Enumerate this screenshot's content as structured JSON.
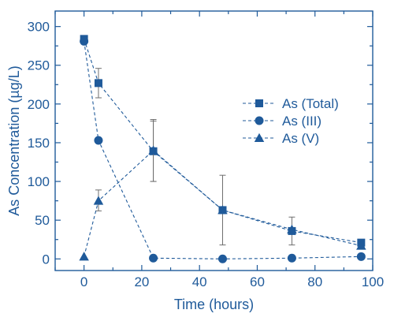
{
  "chart_data": {
    "type": "line",
    "xlabel": "Time (hours)",
    "ylabel": "As Concentration (µg/L)",
    "xlim": [
      -10,
      100
    ],
    "ylim": [
      -15,
      320
    ],
    "xticks": [
      0,
      20,
      40,
      60,
      80,
      100
    ],
    "yticks": [
      0,
      50,
      100,
      150,
      200,
      250,
      300
    ],
    "legend_position": "right-middle",
    "color": "#1f5a9a",
    "series": [
      {
        "name": "As (Total)",
        "marker": "square",
        "x": [
          0,
          5,
          24,
          48,
          72,
          96
        ],
        "y": [
          284,
          227,
          139,
          63,
          36,
          21
        ],
        "err_low": [
          280,
          208,
          100,
          18,
          18,
          18
        ],
        "err_high": [
          288,
          246,
          178,
          108,
          54,
          24
        ]
      },
      {
        "name": "As (III)",
        "marker": "circle",
        "x": [
          0,
          5,
          24,
          48,
          72,
          96
        ],
        "y": [
          281,
          153,
          1,
          0,
          1,
          3
        ],
        "err_low": [
          null,
          null,
          null,
          null,
          null,
          null
        ],
        "err_high": [
          null,
          null,
          null,
          null,
          null,
          null
        ]
      },
      {
        "name": "As (V)",
        "marker": "triangle",
        "x": [
          0,
          5,
          24,
          48,
          72,
          96
        ],
        "y": [
          3,
          75,
          140,
          63,
          38,
          17
        ],
        "err_low": [
          null,
          62,
          100,
          null,
          null,
          null
        ],
        "err_high": [
          null,
          89,
          180,
          null,
          null,
          null
        ]
      }
    ]
  }
}
